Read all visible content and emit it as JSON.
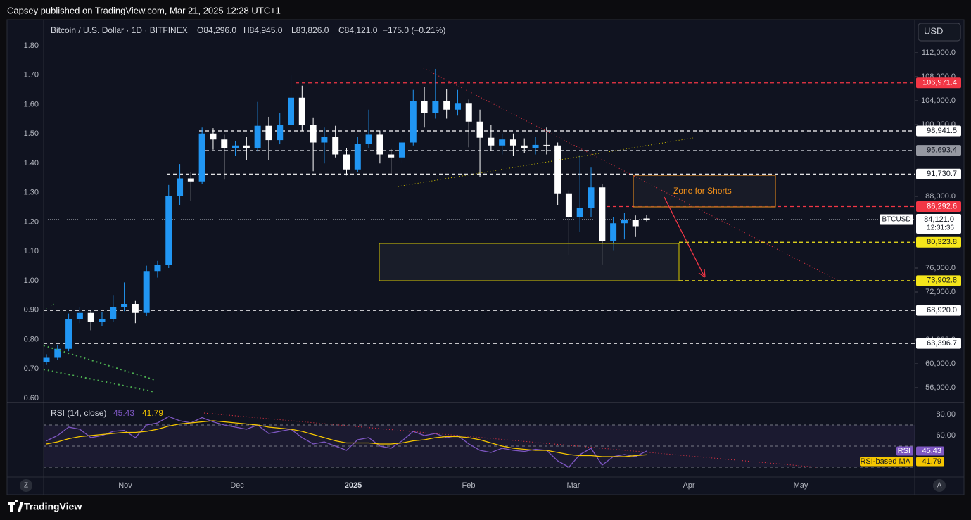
{
  "header": "Capsey published on TradingView.com, Mar 21, 2025 12:28 UTC+1",
  "currency": "USD",
  "footer": "TradingView",
  "buttons": {
    "left": "Z",
    "right": "A"
  },
  "annotations": {
    "zone": "Zone for Shorts"
  },
  "chart_data": {
    "type": "candlestick",
    "title": "Bitcoin / U.S. Dollar · 1D · BITFINEX",
    "ohlc_legend": [
      "O84,296.0",
      "H84,945.0",
      "L83,826.0",
      "C84,121.0",
      "−175.0 (−0.21%)"
    ],
    "up_color": "#2196f3",
    "down_color": "#ffffff",
    "ylim": [
      53765,
      117294
    ],
    "yticks": [
      {
        "value": 112000,
        "label": "112,000.0"
      },
      {
        "value": 108000,
        "label": "108,000.0"
      },
      {
        "value": 104000,
        "label": "104,000.0"
      },
      {
        "value": 100000,
        "label": "100,000.0"
      },
      {
        "value": 88000,
        "label": "88,000.0"
      },
      {
        "value": 76000,
        "label": "76,000.0"
      },
      {
        "value": 72000,
        "label": "72,000.0"
      },
      {
        "value": 64000,
        "label": "64,000.0"
      },
      {
        "value": 60000,
        "label": "60,000.0"
      },
      {
        "value": 56000,
        "label": "56,000.0"
      }
    ],
    "left_axis": {
      "lim": [
        0.5904,
        1.8838
      ],
      "ticks": [
        {
          "value": 0.6,
          "label": "0.60"
        },
        {
          "value": 0.7,
          "label": "0.70"
        },
        {
          "value": 0.8,
          "label": "0.80"
        },
        {
          "value": 0.9,
          "label": "0.90"
        },
        {
          "value": 1.0,
          "label": "1.00"
        },
        {
          "value": 1.1,
          "label": "1.10"
        },
        {
          "value": 1.2,
          "label": "1.20"
        },
        {
          "value": 1.3,
          "label": "1.30"
        },
        {
          "value": 1.4,
          "label": "1.40"
        },
        {
          "value": 1.5,
          "label": "1.50"
        },
        {
          "value": 1.6,
          "label": "1.60"
        },
        {
          "value": 1.7,
          "label": "1.70"
        },
        {
          "value": 1.8,
          "label": "1.80"
        }
      ]
    },
    "x_labels": [
      "Nov",
      "Dec",
      "2025",
      "Feb",
      "Mar",
      "Apr",
      "May"
    ],
    "levels": [
      {
        "value": 106971.4,
        "label": "106,971.4",
        "color": "#f23645"
      },
      {
        "value": 98941.5,
        "label": "98,941.5",
        "color": "#ffffff"
      },
      {
        "value": 95693.4,
        "label": "95,693.4",
        "color": "#9598a1"
      },
      {
        "value": 91730.7,
        "label": "91,730.7",
        "color": "#ffffff"
      },
      {
        "value": 86292.6,
        "label": "86,292.6",
        "color": "#f23645"
      },
      {
        "value": 80323.8,
        "label": "80,323.8",
        "color": "#f5e61b"
      },
      {
        "value": 73902.8,
        "label": "73,902.8",
        "color": "#f5e61b"
      },
      {
        "value": 68920.0,
        "label": "68,920.0",
        "color": "#ffffff"
      },
      {
        "value": 63396.7,
        "label": "63,396.7",
        "color": "#ffffff"
      }
    ],
    "current": {
      "symbol": "BTCUSD",
      "value": 84121.0,
      "label": "84,121.0",
      "countdown": "12:31:36"
    },
    "ohlc": [
      [
        60300,
        61600,
        59800,
        61000
      ],
      [
        61000,
        63200,
        60600,
        62500
      ],
      [
        62500,
        68400,
        62100,
        67500
      ],
      [
        67500,
        69400,
        66800,
        68500
      ],
      [
        68500,
        69000,
        65600,
        67000
      ],
      [
        67000,
        68700,
        66300,
        67500
      ],
      [
        67500,
        71500,
        67000,
        69500
      ],
      [
        69500,
        73600,
        68800,
        70000
      ],
      [
        70000,
        70500,
        66800,
        68500
      ],
      [
        68500,
        76400,
        68000,
        75500
      ],
      [
        75500,
        77200,
        74400,
        76500
      ],
      [
        76500,
        89900,
        76000,
        88000
      ],
      [
        88000,
        93400,
        86500,
        91000
      ],
      [
        91000,
        92000,
        87300,
        90500
      ],
      [
        90500,
        99500,
        90000,
        98500
      ],
      [
        98500,
        99400,
        95800,
        97500
      ],
      [
        97500,
        98300,
        90800,
        96000
      ],
      [
        96000,
        97300,
        94800,
        96500
      ],
      [
        96500,
        98000,
        94000,
        96000
      ],
      [
        96000,
        103800,
        95500,
        99800
      ],
      [
        99800,
        101300,
        94100,
        97400
      ],
      [
        97400,
        101900,
        96700,
        100000
      ],
      [
        100000,
        108300,
        99800,
        104500
      ],
      [
        104500,
        106500,
        99000,
        100000
      ],
      [
        100000,
        101200,
        92200,
        97000
      ],
      [
        97000,
        99500,
        93500,
        98000
      ],
      [
        98000,
        99800,
        94500,
        95000
      ],
      [
        95000,
        96000,
        91500,
        92500
      ],
      [
        92500,
        98000,
        92000,
        96800
      ],
      [
        96800,
        102500,
        96000,
        98300
      ],
      [
        98300,
        99000,
        93500,
        95000
      ],
      [
        95000,
        95900,
        91800,
        94500
      ],
      [
        94500,
        98000,
        93600,
        97000
      ],
      [
        97000,
        105800,
        96500,
        104000
      ],
      [
        104000,
        106300,
        99500,
        102000
      ],
      [
        102000,
        109300,
        101000,
        104000
      ],
      [
        104000,
        106000,
        101000,
        102500
      ],
      [
        102500,
        105800,
        101500,
        103500
      ],
      [
        103500,
        104200,
        96200,
        100500
      ],
      [
        100500,
        102500,
        91300,
        97800
      ],
      [
        97800,
        100000,
        95600,
        96500
      ],
      [
        96500,
        98500,
        95000,
        97500
      ],
      [
        97500,
        98500,
        94800,
        96500
      ],
      [
        96500,
        97700,
        95200,
        96000
      ],
      [
        96000,
        98000,
        95000,
        96600
      ],
      [
        96600,
        99500,
        95000,
        96500
      ],
      [
        96500,
        97000,
        86500,
        88500
      ],
      [
        88500,
        89000,
        78200,
        84500
      ],
      [
        84500,
        94900,
        82000,
        86000
      ],
      [
        86000,
        92800,
        84500,
        89500
      ],
      [
        89500,
        90000,
        76600,
        80500
      ],
      [
        80500,
        84500,
        79000,
        83500
      ],
      [
        83500,
        85200,
        80800,
        84000
      ],
      [
        84000,
        84800,
        81200,
        83000
      ],
      [
        84296,
        84945,
        83826,
        84121
      ]
    ],
    "rsi": {
      "title": "RSI (14, close)",
      "lim": [
        20.67,
        90.67
      ],
      "ticks": [
        {
          "value": 80,
          "label": "80.00"
        },
        {
          "value": 60,
          "label": "60.00"
        }
      ],
      "bands": [
        70,
        50,
        30
      ],
      "series": [
        {
          "name": "RSI",
          "color": "#7e57c2",
          "values": [
            55,
            60,
            68,
            66,
            58,
            60,
            64,
            65,
            58,
            70,
            72,
            78,
            74,
            72,
            77,
            73,
            70,
            68,
            66,
            70,
            62,
            64,
            66,
            58,
            52,
            54,
            50,
            46,
            56,
            58,
            50,
            48,
            55,
            64,
            60,
            62,
            58,
            60,
            52,
            46,
            44,
            48,
            46,
            45,
            47,
            46,
            36,
            30,
            42,
            48,
            32,
            40,
            42,
            40,
            45.43
          ]
        },
        {
          "name": "RSI-based MA",
          "color": "#f5c600",
          "values": [
            52,
            54,
            57,
            59,
            60,
            61,
            62,
            63,
            63,
            64,
            66,
            69,
            71,
            72,
            73,
            74,
            73,
            72,
            71,
            70,
            68,
            67,
            66,
            64,
            61,
            58,
            55,
            53,
            53,
            53,
            52,
            52,
            53,
            55,
            56,
            58,
            59,
            59,
            58,
            56,
            53,
            50,
            48,
            47,
            46,
            46,
            44,
            42,
            41,
            41,
            40,
            40,
            40,
            41,
            41.79
          ]
        }
      ]
    }
  }
}
